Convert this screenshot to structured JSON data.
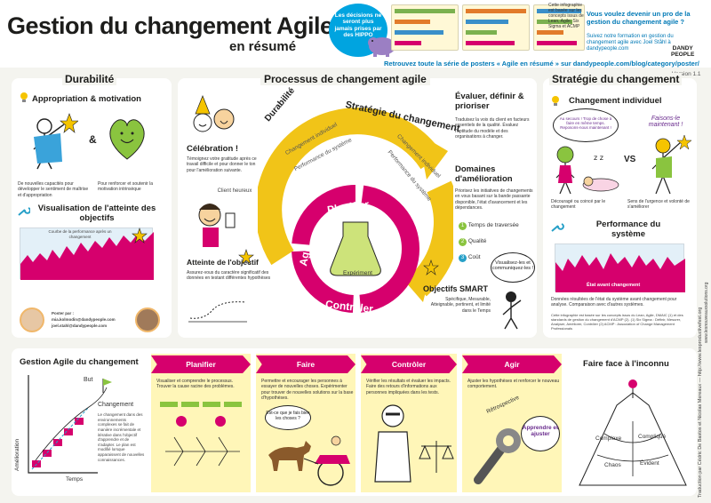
{
  "header": {
    "title": "Gestion du changement Agile",
    "subtitle": "en résumé",
    "bubble": "Les décisions ne seront plus jamais prises par des HIPPO",
    "series": "Retrouvez toute la série de posters « Agile en résumé » sur dandypeople.com/blog/category/poster/",
    "promo_small": "Cette infographie est basée sur les concepts issus de Lean, Agile, Six Sigma et ACMP",
    "promo_question": "Vous voulez devenir un pro de la gestion du changement agile ?",
    "promo_sub": "Suivez notre formation en gestion du changement agile avec Joel Ståhl à dandypeople.com",
    "brand_1": "DANDY",
    "brand_2": "PEOPLE",
    "version": "Version 1.1"
  },
  "durabilite": {
    "title": "Durabilité",
    "approp_title": "Appropriation & motivation",
    "amp": "&",
    "text_left": "De nouvelles capacités pour développer le sentiment de maîtrise et d'appropriation",
    "text_right": "Pour renforcer et soutenir la motivation intrinsèque",
    "visu_title": "Visualisation de l'atteinte des objectifs",
    "chart_note": "Courbe de la performance après un changement",
    "poster_label": "Poster par :",
    "poster_1": "mia.kolmodin@dandypeople.com",
    "poster_2": "joel.stahl@dandypeople.com"
  },
  "processus": {
    "title": "Processus de changement agile",
    "celebration_title": "Célébration !",
    "celebration_text": "Témoignez votre gratitude après ce travail difficile et pour donner le ton pour l'amélioration suivante.",
    "client": "Client heureux",
    "atteinte_title": "Atteinte de l'objectif",
    "atteinte_text": "Assurez-vous du caractère significatif des données en testant différentes hypothèses",
    "arc_durabilite": "Durabilité",
    "arc_strategie": "Stratégie du changement",
    "arc_ci": "Changement individuel",
    "arc_ps": "Performance du système",
    "arc_ci2": "Changement individuel",
    "arc_ps2": "Performance du système",
    "planifier": "Planifier",
    "faire": "Faire",
    "controler": "Contrôler",
    "agir": "Agir",
    "experiment": "Expériment",
    "eval_title": "Évaluer, définir & prioriser",
    "eval_text": "Traduisez la voix du client en facteurs essentiels de la qualité. Évaluez l'aptitude du modèle et des organisations à changer.",
    "domaines_title": "Domaines d'amélioration",
    "domaines_text": "Priorisez les initiatives de changements en vous basant sur la bande passante disponible, l'état d'avancement et les dépendances.",
    "d1": "Temps de traversée",
    "d2": "Qualité",
    "d3": "Coût",
    "visualise": "Visualisez-les et communiquez-les !",
    "smart_title": "Objectifs SMART",
    "smart_text": "Spécifique, Mesurable, Atteignable, pertinent, et limité dans le Temps"
  },
  "strategie": {
    "title": "Stratégie du changement",
    "ci_title": "Changement individuel",
    "bubble_1": "Au secours ! Trop de chose à faire en même temps. Reposons-nous maintenant !",
    "bubble_2": "Faisons-le maintenant !",
    "vs": "VS",
    "text_left": "Découragé ou coincé par le changement",
    "text_right": "Sens de l'urgence et volonté de s'améliorer",
    "ps_title": "Performance du système",
    "chart_label": "État avant changement",
    "chart_note": "Données résultées de l'état du système avant changement pour analyse. Comparaison avec d'autres systèmes.",
    "refs": "Cette infographie est basée sur les concepts issus du Lean, Agile, DMAIC (1) et des standards de gestion du changement d'ACMP (2). (1) Six Sigma : Définir, Mesurer, Analyser, Améliorer, Contrôler (2) ACMP : Association of Change Management Professionals"
  },
  "bottom": {
    "title": "Gestion Agile du changement",
    "but": "But",
    "changement": "Changement",
    "amelioration": "Amélioration",
    "temps": "Temps",
    "left_text": "Le changement dans des environnements complexes se fait de manière incrémentale et itérative dans l'objectif d'apprendre et de s'adapter. Le plan est modifié lorsque apparaissent de nouvelles connaissances.",
    "steps": [
      {
        "label": "Planifier",
        "text": "Visualiser et comprendre le processus. Trouver la cause racine des problèmes."
      },
      {
        "label": "Faire",
        "text": "Permettre et encourager les personnes à essayer de nouvelles choses. Expérimenter pour trouver de nouvelles solutions sur la base d'hypothèses."
      },
      {
        "label": "Contrôler",
        "text": "Vérifier les résultats et évaluer les impacts. Faire des retours d'informations aux personnes impliquées dans les tests."
      },
      {
        "label": "Agir",
        "text": "Ajuster les hypothèses et renforcer le nouveau comportement."
      }
    ],
    "faire_bubble": "Est-ce que je fais bien les choses ?",
    "retro": "Rétrospective",
    "apprendre": "Apprendre et ajuster",
    "inconnu_title": "Faire face à l'inconnu",
    "complexe": "Complexe",
    "complique": "Compliqué",
    "chaos": "Chaos",
    "evident": "Évident"
  },
  "credit": "Traduction par Cédric De Bastos et Nicolas Mereaux — http://www.lesproductivefest.org",
  "side_ref": "www.lesnouveauxsolutions.org"
}
